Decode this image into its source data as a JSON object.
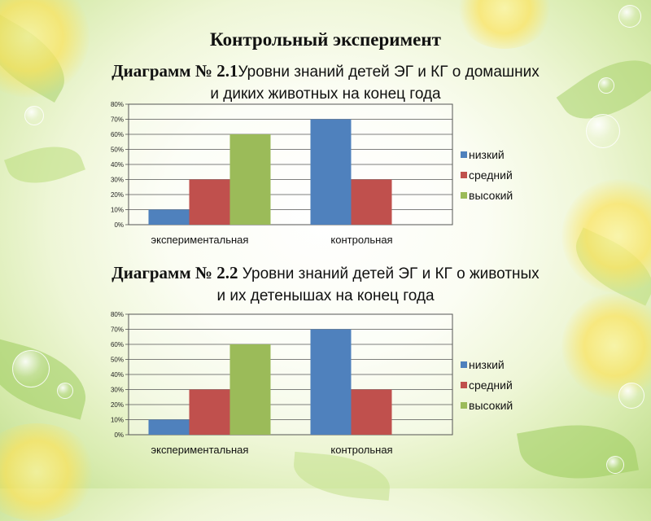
{
  "header": {
    "title": "Контрольный эксперимент"
  },
  "chart_data": [
    {
      "type": "bar",
      "heading_bold": "Диаграмм № 2.1",
      "heading_line1": "Уровни знаний детей ЭГ и КГ о домашних",
      "heading_line2": "и диких животных на конец года",
      "categories": [
        "экспериментальная",
        "контрольная"
      ],
      "series": [
        {
          "name": "низкий",
          "values": [
            10,
            70
          ],
          "color": "#4f81bd"
        },
        {
          "name": "средний",
          "values": [
            30,
            30
          ],
          "color": "#c0504d"
        },
        {
          "name": "высокий",
          "values": [
            60,
            0
          ],
          "color": "#9bbb59"
        }
      ],
      "yticks": [
        "0%",
        "10%",
        "20%",
        "30%",
        "40%",
        "50%",
        "60%",
        "70%",
        "80%"
      ],
      "ylim": [
        0,
        80
      ],
      "grid": true,
      "legend": "right"
    },
    {
      "type": "bar",
      "heading_bold": "Диаграмм № 2.2",
      "heading_line1": " Уровни знаний детей ЭГ и КГ о животных",
      "heading_line2": "и их детенышах на конец года",
      "categories": [
        "экспериментальная",
        "контрольная"
      ],
      "series": [
        {
          "name": "низкий",
          "values": [
            10,
            70
          ],
          "color": "#4f81bd"
        },
        {
          "name": "средний",
          "values": [
            30,
            30
          ],
          "color": "#c0504d"
        },
        {
          "name": "высокий",
          "values": [
            60,
            0
          ],
          "color": "#9bbb59"
        }
      ],
      "yticks": [
        "0%",
        "10%",
        "20%",
        "30%",
        "40%",
        "50%",
        "60%",
        "70%",
        "80%"
      ],
      "ylim": [
        0,
        80
      ],
      "grid": true,
      "legend": "right"
    }
  ]
}
